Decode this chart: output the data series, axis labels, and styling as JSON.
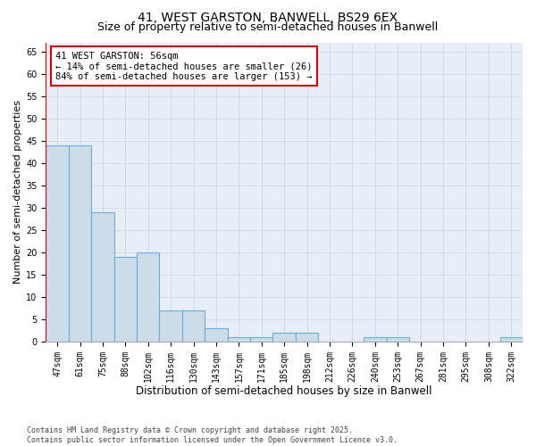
{
  "title_line1": "41, WEST GARSTON, BANWELL, BS29 6EX",
  "title_line2": "Size of property relative to semi-detached houses in Banwell",
  "xlabel": "Distribution of semi-detached houses by size in Banwell",
  "ylabel": "Number of semi-detached properties",
  "categories": [
    "47sqm",
    "61sqm",
    "75sqm",
    "88sqm",
    "102sqm",
    "116sqm",
    "130sqm",
    "143sqm",
    "157sqm",
    "171sqm",
    "185sqm",
    "198sqm",
    "212sqm",
    "226sqm",
    "240sqm",
    "253sqm",
    "267sqm",
    "281sqm",
    "295sqm",
    "308sqm",
    "322sqm"
  ],
  "values": [
    44,
    44,
    29,
    19,
    20,
    7,
    7,
    3,
    1,
    1,
    2,
    2,
    0,
    0,
    1,
    1,
    0,
    0,
    0,
    0,
    1
  ],
  "bar_color": "#ccdce9",
  "bar_edge_color": "#6aaed6",
  "grid_color": "#cdd7e5",
  "background_color": "#e8eef6",
  "annotation_text": "41 WEST GARSTON: 56sqm\n← 14% of semi-detached houses are smaller (26)\n84% of semi-detached houses are larger (153) →",
  "annotation_box_color": "#ffffff",
  "annotation_edge_color": "#cc0000",
  "red_line_x": -0.5,
  "ylim": [
    0,
    67
  ],
  "yticks": [
    0,
    5,
    10,
    15,
    20,
    25,
    30,
    35,
    40,
    45,
    50,
    55,
    60,
    65
  ],
  "footer_text": "Contains HM Land Registry data © Crown copyright and database right 2025.\nContains public sector information licensed under the Open Government Licence v3.0.",
  "title_fontsize": 10,
  "subtitle_fontsize": 9,
  "xlabel_fontsize": 8.5,
  "ylabel_fontsize": 8,
  "tick_fontsize": 7,
  "annotation_fontsize": 7.5,
  "footer_fontsize": 6
}
